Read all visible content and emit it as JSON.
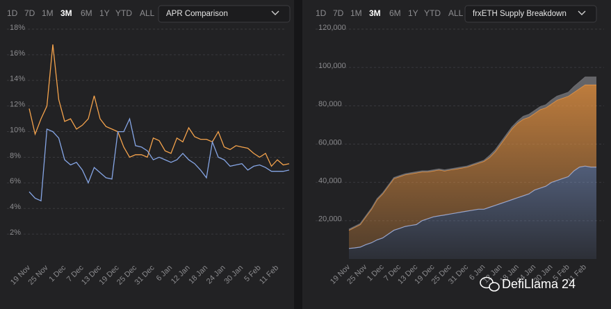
{
  "toolbars": [
    {
      "ranges": [
        "1D",
        "7D",
        "1M",
        "3M",
        "6M",
        "1Y",
        "YTD",
        "ALL"
      ],
      "selected": "3M",
      "dropdown": "APR Comparison"
    },
    {
      "ranges": [
        "1D",
        "7D",
        "1M",
        "3M",
        "6M",
        "1Y",
        "YTD",
        "ALL"
      ],
      "selected": "3M",
      "dropdown": "frxETH Supply Breakdown"
    }
  ],
  "chart_data": [
    {
      "type": "line",
      "categories": [
        "19 Nov",
        null,
        null,
        "25 Nov",
        null,
        null,
        "1 Dec",
        null,
        null,
        "7 Dec",
        null,
        null,
        "13 Dec",
        null,
        null,
        "19 Dec",
        null,
        null,
        "25 Dec",
        null,
        null,
        "31 Dec",
        null,
        null,
        "6 Jan",
        null,
        null,
        "12 Jan",
        null,
        null,
        "18 Jan",
        null,
        null,
        "24 Jan",
        null,
        null,
        "30 Jan",
        null,
        null,
        "5 Feb",
        null,
        null,
        "11 Feb",
        null,
        null
      ],
      "series": [
        {
          "color": "#f5a34c",
          "values": [
            11.8,
            9.8,
            11,
            12,
            16.8,
            12.5,
            10.8,
            11,
            10.2,
            10.5,
            11,
            12.8,
            11,
            10.4,
            10.2,
            10,
            8.8,
            8,
            8.2,
            8.2,
            8,
            9.5,
            9.3,
            8.5,
            8.3,
            9.5,
            9.2,
            10.3,
            9.6,
            9.4,
            9.4,
            9.2,
            10,
            8.8,
            8.6,
            8.9,
            8.8,
            8.7,
            8.3,
            8,
            8.3,
            7.3,
            7.8,
            7.4,
            7.5
          ]
        },
        {
          "color": "#86a6e6",
          "values": [
            5.3,
            4.8,
            4.6,
            10.2,
            10,
            9.5,
            7.8,
            7.4,
            7.6,
            7,
            6,
            7.2,
            6.8,
            6.4,
            6.3,
            10,
            10,
            11,
            8.9,
            8.8,
            8.5,
            7.8,
            8,
            7.8,
            7.6,
            7.8,
            8.3,
            7.8,
            7.5,
            7,
            6.4,
            9.2,
            8,
            7.8,
            7.3,
            7.4,
            7.5,
            7,
            7.3,
            7.4,
            7.2,
            6.9,
            6.9,
            6.9,
            7
          ]
        }
      ],
      "ylim": [
        0,
        18
      ],
      "yticks": [
        {
          "value": 2,
          "label": "2%"
        },
        {
          "value": 4,
          "label": "4%"
        },
        {
          "value": 6,
          "label": "6%"
        },
        {
          "value": 8,
          "label": "8%"
        },
        {
          "value": 10,
          "label": "10%"
        },
        {
          "value": 12,
          "label": "12%"
        },
        {
          "value": 14,
          "label": "14%"
        },
        {
          "value": 16,
          "label": "16%"
        },
        {
          "value": 18,
          "label": "18%"
        }
      ],
      "grid": true
    },
    {
      "type": "stacked-area",
      "categories": [
        "19 Nov",
        null,
        null,
        "25 Nov",
        null,
        null,
        "1 Dec",
        null,
        null,
        "7 Dec",
        null,
        null,
        "13 Dec",
        null,
        null,
        "19 Dec",
        null,
        null,
        "25 Dec",
        null,
        null,
        "31 Dec",
        null,
        null,
        "6 Jan",
        null,
        null,
        "12 Jan",
        null,
        null,
        "18 Jan",
        null,
        null,
        "24 Jan",
        null,
        null,
        "30 Jan",
        null,
        null,
        "5 Feb",
        null,
        null,
        "11 Feb",
        null,
        null
      ],
      "series": [
        {
          "color": "#8aa6e0",
          "values": [
            5500,
            5800,
            6200,
            7500,
            8500,
            10000,
            11000,
            13000,
            15000,
            16000,
            17000,
            17500,
            18000,
            20000,
            21000,
            22000,
            22500,
            23000,
            23500,
            24000,
            24500,
            25000,
            25500,
            26000,
            26000,
            27000,
            28000,
            29000,
            30000,
            31000,
            32000,
            33000,
            34000,
            36000,
            37000,
            38000,
            40000,
            41000,
            42000,
            43000,
            46000,
            48000,
            48500,
            48000,
            48000
          ]
        },
        {
          "color": "#f19a45",
          "values": [
            9500,
            10700,
            11800,
            14500,
            17500,
            21000,
            23000,
            25000,
            27000,
            27000,
            27000,
            27000,
            27000,
            25500,
            24500,
            24000,
            24000,
            23000,
            23000,
            23000,
            23000,
            23000,
            23500,
            24000,
            25000,
            26000,
            28000,
            31000,
            34000,
            37000,
            39000,
            40000,
            40000,
            40000,
            41000,
            41000,
            41000,
            42000,
            42000,
            42000,
            41000,
            41000,
            42500,
            43000,
            43000
          ]
        },
        {
          "color": "#6b6b6f",
          "values": [
            500,
            500,
            500,
            500,
            500,
            500,
            500,
            500,
            500,
            500,
            500,
            500,
            500,
            500,
            500,
            500,
            500,
            500,
            500,
            500,
            500,
            500,
            500,
            500,
            500,
            1000,
            1000,
            1000,
            1000,
            1000,
            1000,
            1500,
            1500,
            1500,
            1500,
            1500,
            2000,
            2000,
            2000,
            2000,
            3000,
            3500,
            4000,
            4000,
            4000
          ]
        }
      ],
      "ylim": [
        0,
        120000
      ],
      "yticks": [
        {
          "value": 20000,
          "label": "20,000"
        },
        {
          "value": 40000,
          "label": "40,000"
        },
        {
          "value": 60000,
          "label": "60,000"
        },
        {
          "value": 80000,
          "label": "80,000"
        },
        {
          "value": 100000,
          "label": "100,000"
        },
        {
          "value": 120000,
          "label": "120,000"
        }
      ],
      "grid": true
    }
  ],
  "watermark": "DefiLlama 24"
}
